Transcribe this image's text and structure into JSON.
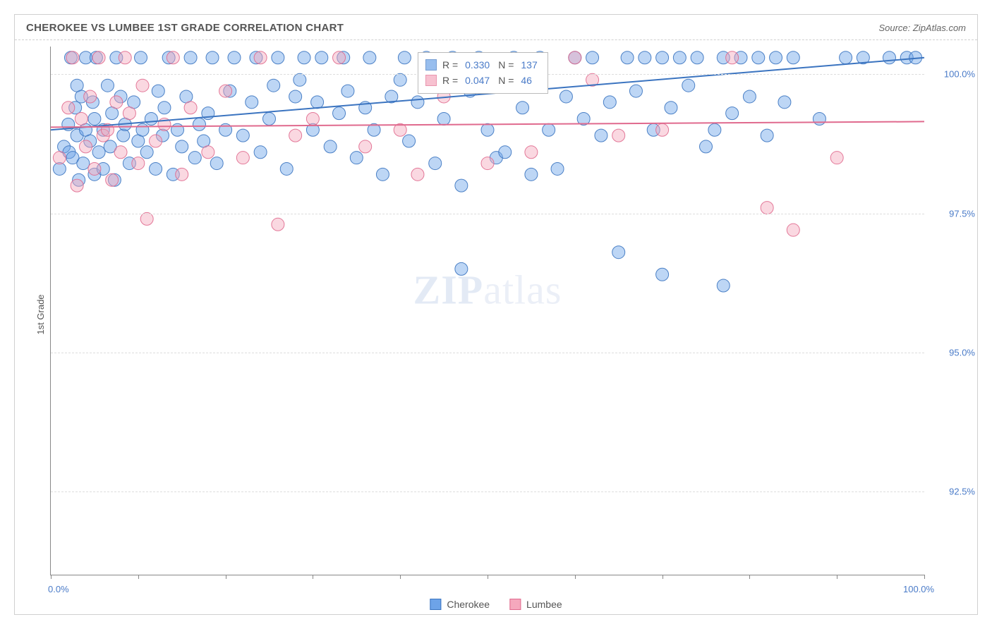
{
  "title": "CHEROKEE VS LUMBEE 1ST GRADE CORRELATION CHART",
  "source": "Source: ZipAtlas.com",
  "watermark_a": "ZIP",
  "watermark_b": "atlas",
  "y_axis_label": "1st Grade",
  "chart": {
    "type": "scatter-with-regression",
    "background_color": "#ffffff",
    "grid_color": "#dddddd",
    "axis_color": "#888888",
    "text_color": "#555555",
    "value_color": "#4a7bc8",
    "xlim": [
      0,
      100
    ],
    "ylim": [
      91.0,
      100.5
    ],
    "x_ticks": [
      0,
      10,
      20,
      30,
      40,
      50,
      60,
      70,
      80,
      90,
      100
    ],
    "x_tick_labels": {
      "0": "0.0%",
      "100": "100.0%"
    },
    "y_ticks": [
      92.5,
      95.0,
      97.5,
      100.0
    ],
    "y_tick_labels": {
      "92.5": "92.5%",
      "95.0": "95.0%",
      "97.5": "97.5%",
      "100.0": "100.0%"
    },
    "marker_radius": 9,
    "marker_opacity": 0.45,
    "marker_stroke_opacity": 0.9,
    "line_width": 2,
    "series": [
      {
        "name": "Cherokee",
        "color": "#6da3e8",
        "stroke": "#3b74c0",
        "stats": {
          "R": "0.330",
          "N": "137"
        },
        "regression": {
          "x1": 0,
          "y1": 99.0,
          "x2": 100,
          "y2": 100.3
        },
        "points": [
          [
            1,
            98.3
          ],
          [
            1.5,
            98.7
          ],
          [
            2,
            99.1
          ],
          [
            2.1,
            98.6
          ],
          [
            2.3,
            100.3
          ],
          [
            2.5,
            98.5
          ],
          [
            2.8,
            99.4
          ],
          [
            3,
            98.9
          ],
          [
            3,
            99.8
          ],
          [
            3.2,
            98.1
          ],
          [
            3.5,
            99.6
          ],
          [
            3.7,
            98.4
          ],
          [
            4,
            99.0
          ],
          [
            4,
            100.3
          ],
          [
            4.5,
            98.8
          ],
          [
            4.8,
            99.5
          ],
          [
            5,
            98.2
          ],
          [
            5,
            99.2
          ],
          [
            5.2,
            100.3
          ],
          [
            5.5,
            98.6
          ],
          [
            6,
            99.0
          ],
          [
            6,
            98.3
          ],
          [
            6.5,
            99.8
          ],
          [
            6.8,
            98.7
          ],
          [
            7,
            99.3
          ],
          [
            7.3,
            98.1
          ],
          [
            7.5,
            100.3
          ],
          [
            8,
            99.6
          ],
          [
            8.3,
            98.9
          ],
          [
            8.5,
            99.1
          ],
          [
            9,
            98.4
          ],
          [
            9.5,
            99.5
          ],
          [
            10,
            98.8
          ],
          [
            10.3,
            100.3
          ],
          [
            10.5,
            99.0
          ],
          [
            11,
            98.6
          ],
          [
            11.5,
            99.2
          ],
          [
            12,
            98.3
          ],
          [
            12.3,
            99.7
          ],
          [
            12.8,
            98.9
          ],
          [
            13,
            99.4
          ],
          [
            13.5,
            100.3
          ],
          [
            14,
            98.2
          ],
          [
            14.5,
            99.0
          ],
          [
            15,
            98.7
          ],
          [
            15.5,
            99.6
          ],
          [
            16,
            100.3
          ],
          [
            16.5,
            98.5
          ],
          [
            17,
            99.1
          ],
          [
            17.5,
            98.8
          ],
          [
            18,
            99.3
          ],
          [
            18.5,
            100.3
          ],
          [
            19,
            98.4
          ],
          [
            20,
            99.0
          ],
          [
            20.5,
            99.7
          ],
          [
            21,
            100.3
          ],
          [
            22,
            98.9
          ],
          [
            23,
            99.5
          ],
          [
            23.5,
            100.3
          ],
          [
            24,
            98.6
          ],
          [
            25,
            99.2
          ],
          [
            25.5,
            99.8
          ],
          [
            26,
            100.3
          ],
          [
            27,
            98.3
          ],
          [
            28,
            99.6
          ],
          [
            28.5,
            99.9
          ],
          [
            29,
            100.3
          ],
          [
            30,
            99.0
          ],
          [
            30.5,
            99.5
          ],
          [
            31,
            100.3
          ],
          [
            32,
            98.7
          ],
          [
            33,
            99.3
          ],
          [
            33.5,
            100.3
          ],
          [
            34,
            99.7
          ],
          [
            35,
            98.5
          ],
          [
            36,
            99.4
          ],
          [
            36.5,
            100.3
          ],
          [
            37,
            99.0
          ],
          [
            38,
            98.2
          ],
          [
            39,
            99.6
          ],
          [
            40,
            99.9
          ],
          [
            40.5,
            100.3
          ],
          [
            41,
            98.8
          ],
          [
            42,
            99.5
          ],
          [
            43,
            100.3
          ],
          [
            44,
            98.4
          ],
          [
            45,
            99.2
          ],
          [
            46,
            100.3
          ],
          [
            47,
            96.5
          ],
          [
            48,
            99.7
          ],
          [
            49,
            100.3
          ],
          [
            50,
            99.0
          ],
          [
            51,
            98.5
          ],
          [
            52,
            98.6
          ],
          [
            53,
            100.3
          ],
          [
            54,
            99.4
          ],
          [
            55,
            99.8
          ],
          [
            56,
            100.3
          ],
          [
            57,
            99.0
          ],
          [
            58,
            98.3
          ],
          [
            59,
            99.6
          ],
          [
            60,
            100.3
          ],
          [
            61,
            99.2
          ],
          [
            62,
            100.3
          ],
          [
            63,
            98.9
          ],
          [
            64,
            99.5
          ],
          [
            65,
            96.8
          ],
          [
            66,
            100.3
          ],
          [
            67,
            99.7
          ],
          [
            68,
            100.3
          ],
          [
            69,
            99.0
          ],
          [
            70,
            100.3
          ],
          [
            71,
            99.4
          ],
          [
            72,
            100.3
          ],
          [
            73,
            99.8
          ],
          [
            74,
            100.3
          ],
          [
            75,
            98.7
          ],
          [
            76,
            99.0
          ],
          [
            77,
            100.3
          ],
          [
            78,
            99.3
          ],
          [
            79,
            100.3
          ],
          [
            80,
            99.6
          ],
          [
            81,
            100.3
          ],
          [
            82,
            98.9
          ],
          [
            83,
            100.3
          ],
          [
            84,
            99.5
          ],
          [
            85,
            100.3
          ],
          [
            88,
            99.2
          ],
          [
            91,
            100.3
          ],
          [
            93,
            100.3
          ],
          [
            96,
            100.3
          ],
          [
            98,
            100.3
          ],
          [
            99,
            100.3
          ],
          [
            70,
            96.4
          ],
          [
            77,
            96.2
          ],
          [
            47,
            98.0
          ],
          [
            55,
            98.2
          ]
        ]
      },
      {
        "name": "Lumbee",
        "color": "#f5a8bd",
        "stroke": "#e06a8e",
        "stats": {
          "R": "0.047",
          "N": "46"
        },
        "regression": {
          "x1": 0,
          "y1": 99.05,
          "x2": 100,
          "y2": 99.15
        },
        "points": [
          [
            1,
            98.5
          ],
          [
            2,
            99.4
          ],
          [
            2.5,
            100.3
          ],
          [
            3,
            98.0
          ],
          [
            3.5,
            99.2
          ],
          [
            4,
            98.7
          ],
          [
            4.5,
            99.6
          ],
          [
            5,
            98.3
          ],
          [
            5.5,
            100.3
          ],
          [
            6,
            98.9
          ],
          [
            6.5,
            99.0
          ],
          [
            7,
            98.1
          ],
          [
            7.5,
            99.5
          ],
          [
            8,
            98.6
          ],
          [
            8.5,
            100.3
          ],
          [
            9,
            99.3
          ],
          [
            10,
            98.4
          ],
          [
            10.5,
            99.8
          ],
          [
            11,
            97.4
          ],
          [
            12,
            98.8
          ],
          [
            13,
            99.1
          ],
          [
            14,
            100.3
          ],
          [
            15,
            98.2
          ],
          [
            16,
            99.4
          ],
          [
            18,
            98.6
          ],
          [
            20,
            99.7
          ],
          [
            22,
            98.5
          ],
          [
            24,
            100.3
          ],
          [
            26,
            97.3
          ],
          [
            28,
            98.9
          ],
          [
            30,
            99.2
          ],
          [
            33,
            100.3
          ],
          [
            36,
            98.7
          ],
          [
            40,
            99.0
          ],
          [
            42,
            98.2
          ],
          [
            45,
            99.6
          ],
          [
            50,
            98.4
          ],
          [
            55,
            98.6
          ],
          [
            60,
            100.3
          ],
          [
            62,
            99.9
          ],
          [
            65,
            98.9
          ],
          [
            70,
            99.0
          ],
          [
            78,
            100.3
          ],
          [
            82,
            97.6
          ],
          [
            85,
            97.2
          ],
          [
            90,
            98.5
          ]
        ]
      }
    ],
    "legend": [
      "Cherokee",
      "Lumbee"
    ]
  },
  "stats_box_labels": {
    "R": "R =",
    "N": "N ="
  }
}
